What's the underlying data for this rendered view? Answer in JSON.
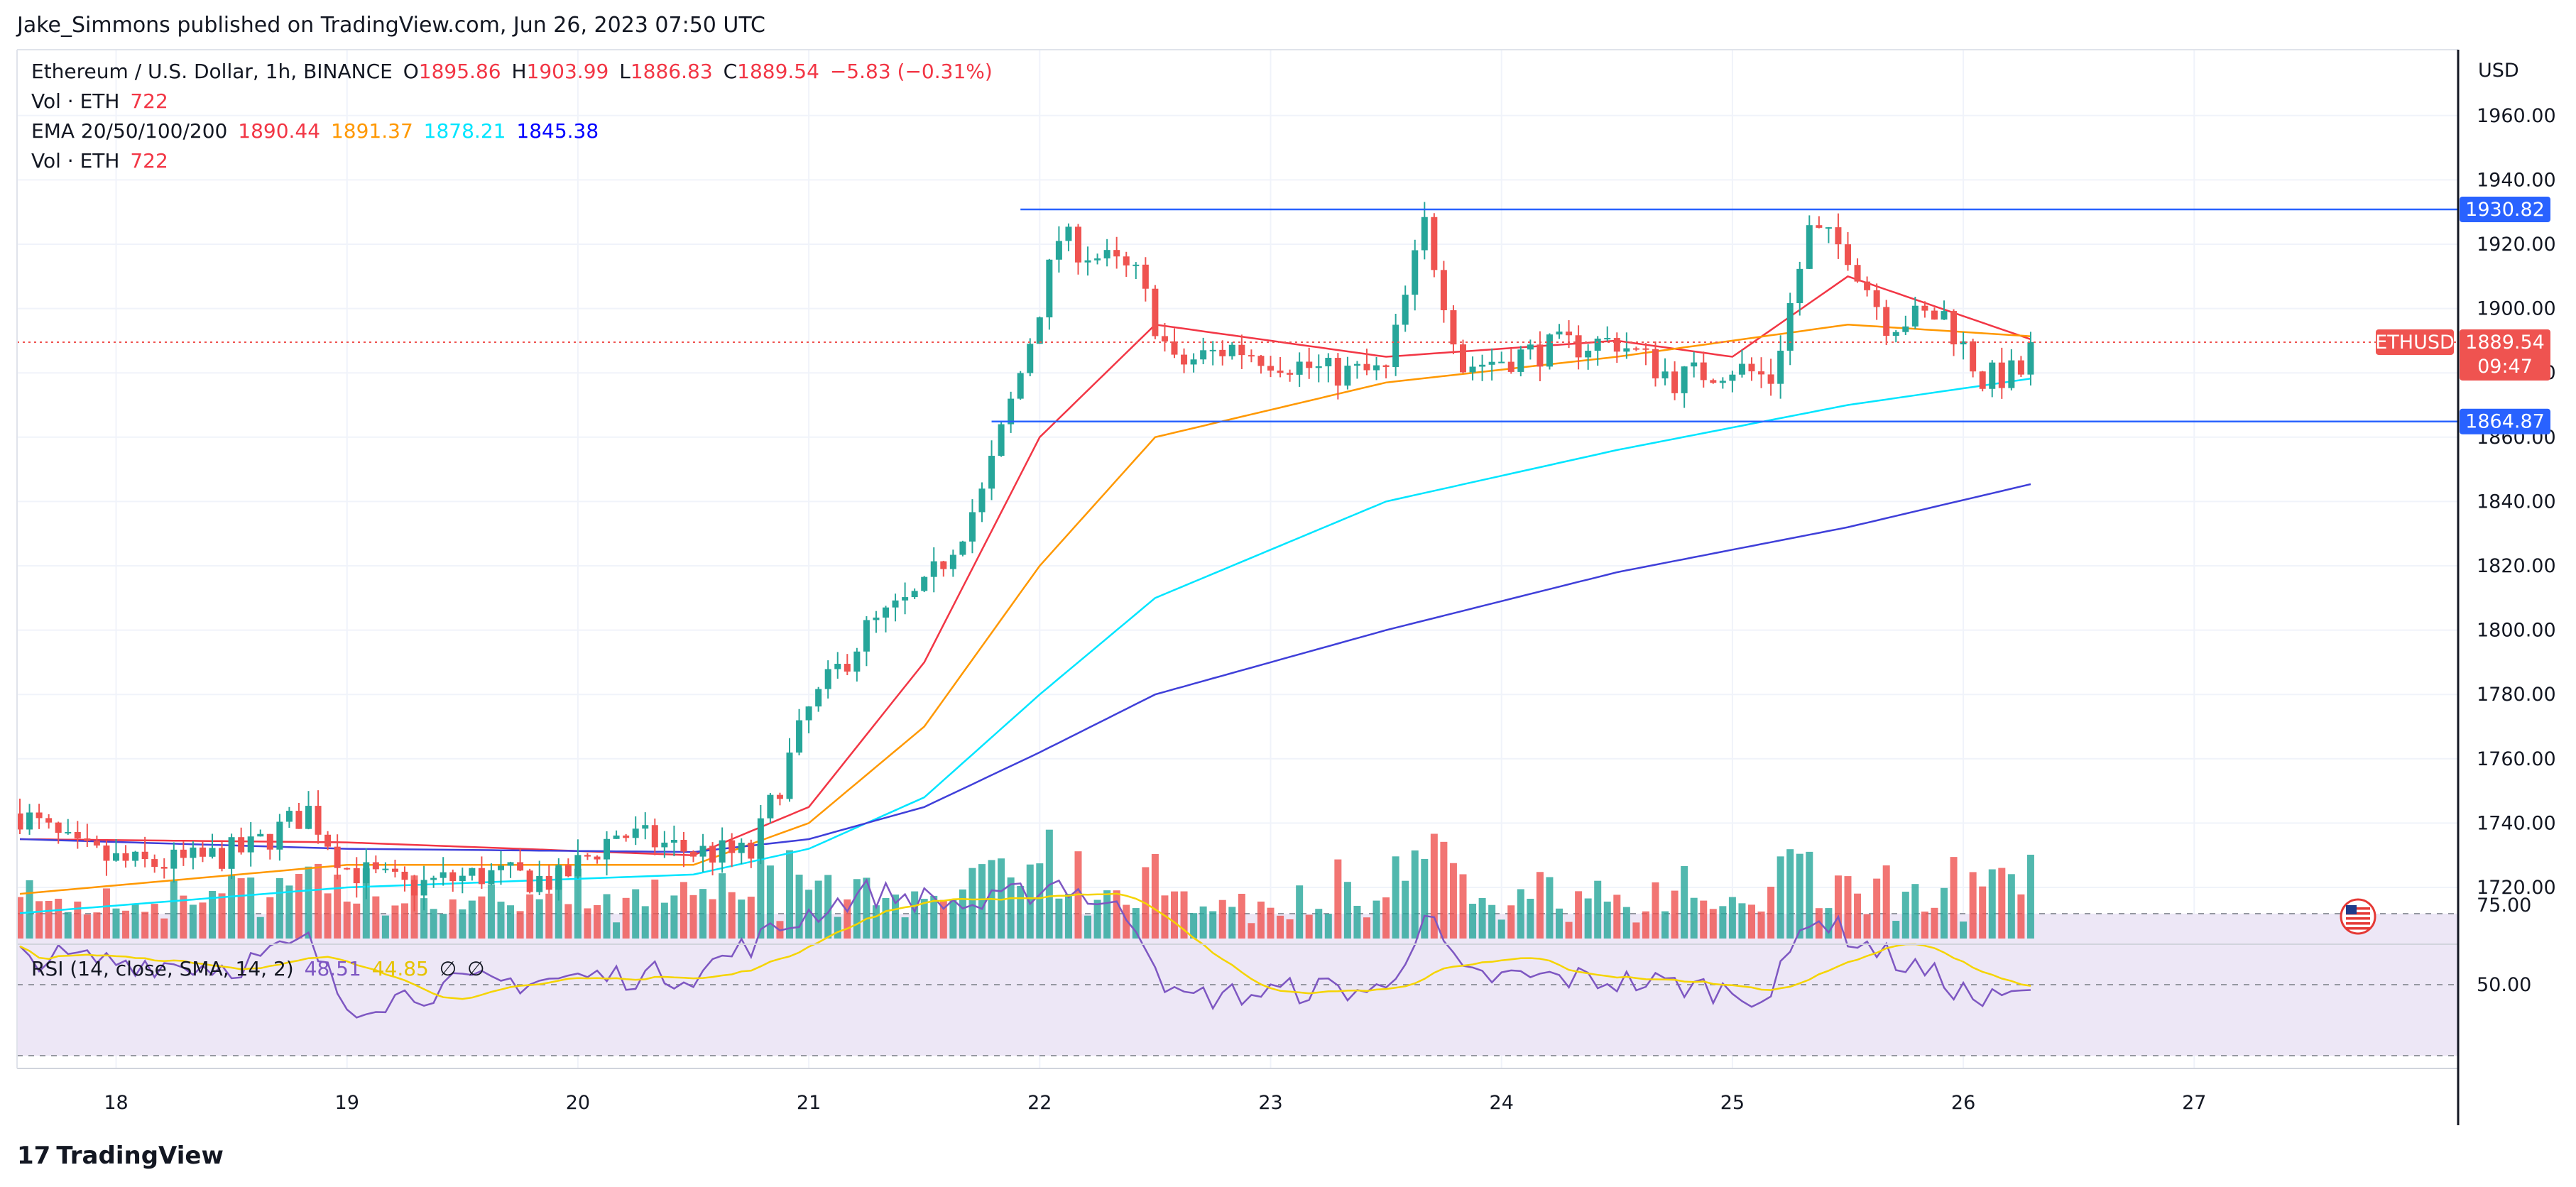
{
  "publisher_line": "Jake_Simmons published on TradingView.com, Jun 26, 2023 07:50 UTC",
  "branding": "TradingView",
  "legend": {
    "symbol": "Ethereum / U.S. Dollar, 1h, BINANCE",
    "open_label": "O",
    "open": "1895.86",
    "high_label": "H",
    "high": "1903.99",
    "low_label": "L",
    "low": "1886.83",
    "close_label": "C",
    "close": "1889.54",
    "change": "−5.83 (−0.31%)",
    "vol1_label": "Vol · ETH",
    "vol1_value": "722",
    "ema_label": "EMA 20/50/100/200",
    "ema20": "1890.44",
    "ema50": "1891.37",
    "ema100": "1878.21",
    "ema200": "1845.38",
    "vol2_label": "Vol · ETH",
    "vol2_value": "722",
    "rsi_label": "RSI (14, close, SMA, 14, 2)",
    "rsi_value": "48.51",
    "rsi_sma": "44.85",
    "rsi_na1": "∅",
    "rsi_na2": "∅"
  },
  "colors": {
    "up": "#26a69a",
    "down": "#ef5350",
    "ema20": "#f23645",
    "ema50": "#ff9800",
    "ema100": "#00e5ff",
    "ema200": "#3f3fd9",
    "level": "#2962ff",
    "rsi": "#7e57c2",
    "rsi_sma": "#f5d400",
    "rsi_band": "#ede7f6"
  },
  "price_axis": {
    "currency": "USD",
    "ticks": [
      "1960.00",
      "1940.00",
      "1920.00",
      "1900.00",
      "1880.00",
      "1860.00",
      "1840.00",
      "1820.00",
      "1800.00",
      "1780.00",
      "1760.00",
      "1740.00",
      "1720.00"
    ]
  },
  "rsi_axis": {
    "ticks": [
      "75.00",
      "50.00"
    ]
  },
  "time_axis": {
    "ticks": [
      "18",
      "19",
      "20",
      "21",
      "22",
      "23",
      "24",
      "25",
      "26",
      "27"
    ]
  },
  "tags": {
    "resistance": "1930.82",
    "support": "1864.87",
    "symbol_tag": "ETHUSD",
    "last_price": "1889.54",
    "countdown": "09:47"
  },
  "chart_data": {
    "type": "candlestick",
    "symbol": "Ethereum / U.S. Dollar",
    "interval": "1h",
    "x_start": "Jun 17 2023 14:00",
    "y_range": [
      1710,
      1970
    ],
    "rsi_range": [
      30,
      80
    ],
    "levels": [
      1930.82,
      1864.87
    ],
    "series_anchors": {
      "close": [
        [
          "Jun 17 14:00",
          1743
        ],
        [
          "Jun 17 20:00",
          1731
        ],
        [
          "Jun 18 02:00",
          1727
        ],
        [
          "Jun 18 08:00",
          1728
        ],
        [
          "Jun 18 14:00",
          1732
        ],
        [
          "Jun 18 20:00",
          1744
        ],
        [
          "Jun 19 00:00",
          1726
        ],
        [
          "Jun 19 06:00",
          1720
        ],
        [
          "Jun 19 14:00",
          1724
        ],
        [
          "Jun 19 22:00",
          1722
        ],
        [
          "Jun 20 04:00",
          1737
        ],
        [
          "Jun 20 12:00",
          1731
        ],
        [
          "Jun 20 18:00",
          1730
        ],
        [
          "Jun 21 00:00",
          1775
        ],
        [
          "Jun 21 06:00",
          1800
        ],
        [
          "Jun 21 12:00",
          1812
        ],
        [
          "Jun 21 18:00",
          1842
        ],
        [
          "Jun 21 22:00",
          1880
        ],
        [
          "Jun 22 02:00",
          1922
        ],
        [
          "Jun 22 10:00",
          1910
        ],
        [
          "Jun 22 14:00",
          1882
        ],
        [
          "Jun 22 20:00",
          1888
        ],
        [
          "Jun 23 06:00",
          1880
        ],
        [
          "Jun 23 12:00",
          1880
        ],
        [
          "Jun 23 16:00",
          1926
        ],
        [
          "Jun 23 20:00",
          1882
        ],
        [
          "Jun 24 06:00",
          1888
        ],
        [
          "Jun 24 12:00",
          1890
        ],
        [
          "Jun 24 18:00",
          1878
        ],
        [
          "Jun 25 00:00",
          1882
        ],
        [
          "Jun 25 04:00",
          1878
        ],
        [
          "Jun 25 08:00",
          1924
        ],
        [
          "Jun 25 12:00",
          1918
        ],
        [
          "Jun 25 16:00",
          1896
        ],
        [
          "Jun 25 22:00",
          1898
        ],
        [
          "Jun 26 02:00",
          1878
        ],
        [
          "Jun 26 06:00",
          1880
        ],
        [
          "Jun 26 07:00",
          1889.54
        ]
      ],
      "ema20": [
        [
          "Jun 17 14:00",
          1735
        ],
        [
          "Jun 19 00:00",
          1734
        ],
        [
          "Jun 20 12:00",
          1730
        ],
        [
          "Jun 21 00:00",
          1745
        ],
        [
          "Jun 21 12:00",
          1790
        ],
        [
          "Jun 22 00:00",
          1860
        ],
        [
          "Jun 22 12:00",
          1895
        ],
        [
          "Jun 23 12:00",
          1885
        ],
        [
          "Jun 24 12:00",
          1890
        ],
        [
          "Jun 25 00:00",
          1885
        ],
        [
          "Jun 25 12:00",
          1910
        ],
        [
          "Jun 26 07:00",
          1890.44
        ]
      ],
      "ema50": [
        [
          "Jun 17 14:00",
          1718
        ],
        [
          "Jun 19 00:00",
          1727
        ],
        [
          "Jun 20 12:00",
          1727
        ],
        [
          "Jun 21 00:00",
          1740
        ],
        [
          "Jun 21 12:00",
          1770
        ],
        [
          "Jun 22 00:00",
          1820
        ],
        [
          "Jun 22 12:00",
          1860
        ],
        [
          "Jun 23 12:00",
          1877
        ],
        [
          "Jun 24 12:00",
          1885
        ],
        [
          "Jun 25 12:00",
          1895
        ],
        [
          "Jun 26 07:00",
          1891.37
        ]
      ],
      "ema100": [
        [
          "Jun 17 14:00",
          1712
        ],
        [
          "Jun 19 00:00",
          1720
        ],
        [
          "Jun 20 12:00",
          1724
        ],
        [
          "Jun 21 00:00",
          1732
        ],
        [
          "Jun 21 12:00",
          1748
        ],
        [
          "Jun 22 00:00",
          1780
        ],
        [
          "Jun 22 12:00",
          1810
        ],
        [
          "Jun 23 12:00",
          1840
        ],
        [
          "Jun 24 12:00",
          1856
        ],
        [
          "Jun 25 12:00",
          1870
        ],
        [
          "Jun 26 07:00",
          1878.21
        ]
      ],
      "ema200": [
        [
          "Jun 17 14:00",
          1735
        ],
        [
          "Jun 19 00:00",
          1732
        ],
        [
          "Jun 20 12:00",
          1731
        ],
        [
          "Jun 21 00:00",
          1735
        ],
        [
          "Jun 21 12:00",
          1745
        ],
        [
          "Jun 22 00:00",
          1762
        ],
        [
          "Jun 22 12:00",
          1780
        ],
        [
          "Jun 23 12:00",
          1800
        ],
        [
          "Jun 24 12:00",
          1818
        ],
        [
          "Jun 25 12:00",
          1832
        ],
        [
          "Jun 26 07:00",
          1845.38
        ]
      ],
      "rsi": [
        [
          "Jun 17 14:00",
          58
        ],
        [
          "Jun 18 12:00",
          55
        ],
        [
          "Jun 18 20:00",
          62
        ],
        [
          "Jun 19 00:00",
          44
        ],
        [
          "Jun 19 12:00",
          50
        ],
        [
          "Jun 20 00:00",
          52
        ],
        [
          "Jun 20 12:00",
          53
        ],
        [
          "Jun 21 00:00",
          70
        ],
        [
          "Jun 21 06:00",
          76
        ],
        [
          "Jun 21 18:00",
          72
        ],
        [
          "Jun 22 02:00",
          79
        ],
        [
          "Jun 22 10:00",
          68
        ],
        [
          "Jun 22 14:00",
          46
        ],
        [
          "Jun 23 06:00",
          49
        ],
        [
          "Jun 23 12:00",
          48
        ],
        [
          "Jun 23 16:00",
          70
        ],
        [
          "Jun 23 20:00",
          52
        ],
        [
          "Jun 24 06:00",
          52
        ],
        [
          "Jun 24 18:00",
          50
        ],
        [
          "Jun 25 04:00",
          47
        ],
        [
          "Jun 25 08:00",
          70
        ],
        [
          "Jun 25 16:00",
          58
        ],
        [
          "Jun 25 22:00",
          51
        ],
        [
          "Jun 26 02:00",
          45
        ],
        [
          "Jun 26 06:00",
          47
        ],
        [
          "Jun 26 07:00",
          48.51
        ]
      ]
    },
    "volume_scale_max": 1.0
  }
}
